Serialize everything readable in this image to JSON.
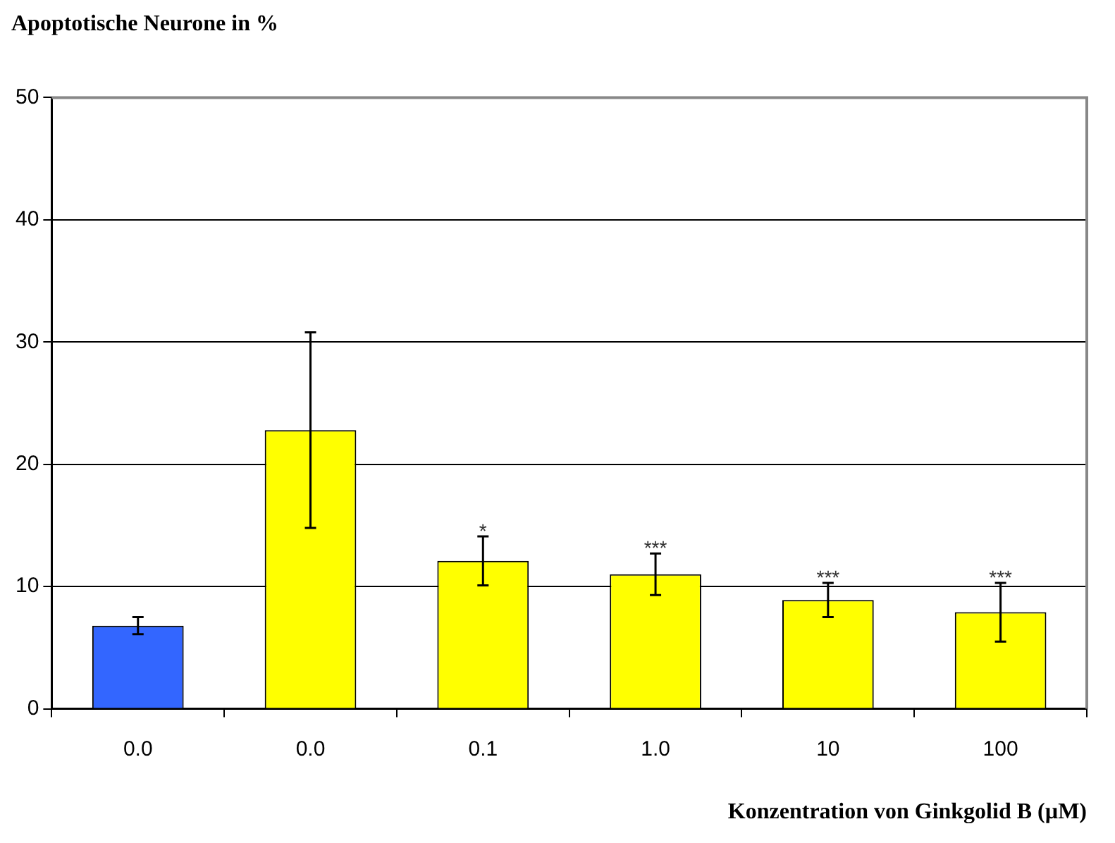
{
  "chart_data": {
    "type": "bar",
    "ylabel": "Apoptotische Neurone in %",
    "xlabel": "Konzentration von Ginkgolid B (µM)",
    "categories": [
      "0.0",
      "0.0",
      "0.1",
      "1.0",
      "10",
      "100"
    ],
    "values": [
      6.8,
      22.8,
      12.1,
      11.0,
      8.9,
      7.9
    ],
    "errors": [
      0.7,
      8,
      2,
      1.7,
      1.4,
      2.4
    ],
    "colors": [
      "#3366ff",
      "#ffff00",
      "#ffff00",
      "#ffff00",
      "#ffff00",
      "#ffff00"
    ],
    "ylim": [
      0,
      50
    ],
    "yticks": [
      0,
      10,
      20,
      30,
      40,
      50
    ],
    "grid": "y",
    "legend": false,
    "annotations": [
      {
        "text": "*",
        "x": "0.1",
        "y": 14.1
      },
      {
        "text": "***",
        "x": "1.0",
        "y": 12.7
      },
      {
        "text": "***",
        "x": "10",
        "y": 10.3
      },
      {
        "text": "***",
        "x": "100",
        "y": 10.3
      }
    ]
  }
}
